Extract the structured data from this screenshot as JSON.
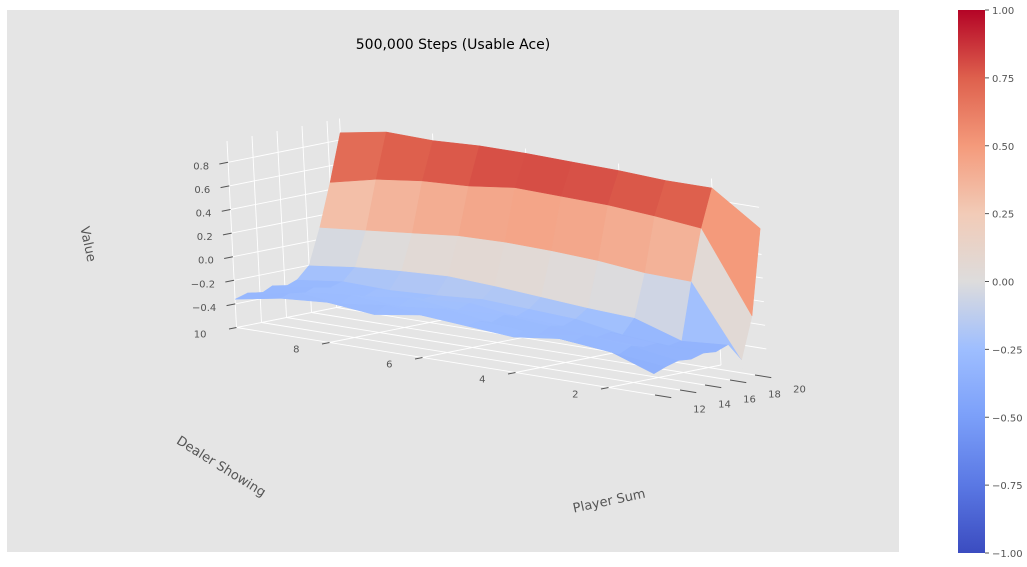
{
  "chart_data": {
    "type": "surface3d",
    "title": "500,000 Steps (Usable Ace)",
    "xlabel": "Player Sum",
    "ylabel": "Dealer Showing",
    "zlabel": "Value",
    "x_ticks": [
      "12",
      "14",
      "16",
      "18",
      "20"
    ],
    "y_ticks": [
      "2",
      "4",
      "6",
      "8",
      "10"
    ],
    "z_ticks": [
      "−0.4",
      "−0.2",
      "0.0",
      "0.2",
      "0.4",
      "0.6",
      "0.8"
    ],
    "x": [
      12,
      13,
      14,
      15,
      16,
      17,
      18,
      19,
      20,
      21
    ],
    "y": [
      1,
      2,
      3,
      4,
      5,
      6,
      7,
      8,
      9,
      10
    ],
    "zlim": [
      -0.6,
      0.98
    ],
    "z": [
      [
        -0.42,
        -0.38,
        -0.35,
        -0.36,
        -0.33,
        -0.34,
        -0.3,
        -0.45,
        -0.1,
        0.62
      ],
      [
        -0.28,
        -0.34,
        -0.29,
        -0.32,
        -0.31,
        -0.35,
        -0.33,
        0.15,
        0.58,
        0.9
      ],
      [
        -0.25,
        -0.3,
        -0.26,
        -0.3,
        -0.28,
        -0.32,
        -0.2,
        0.16,
        0.62,
        0.9
      ],
      [
        -0.3,
        -0.26,
        -0.32,
        -0.27,
        -0.29,
        -0.25,
        -0.18,
        0.2,
        0.65,
        0.92
      ],
      [
        -0.27,
        -0.25,
        -0.28,
        -0.24,
        -0.27,
        -0.23,
        -0.15,
        0.22,
        0.66,
        0.93
      ],
      [
        -0.24,
        -0.28,
        -0.23,
        -0.26,
        -0.22,
        -0.21,
        -0.12,
        0.23,
        0.67,
        0.94
      ],
      [
        -0.3,
        -0.24,
        -0.27,
        -0.22,
        -0.25,
        -0.24,
        -0.1,
        0.22,
        0.62,
        0.94
      ],
      [
        -0.26,
        -0.29,
        -0.24,
        -0.27,
        -0.23,
        -0.26,
        -0.12,
        0.18,
        0.6,
        0.92
      ],
      [
        -0.29,
        -0.25,
        -0.28,
        -0.24,
        -0.28,
        -0.25,
        -0.15,
        0.14,
        0.55,
        0.93
      ],
      [
        -0.36,
        -0.33,
        -0.36,
        -0.31,
        -0.34,
        -0.3,
        -0.2,
        0.1,
        0.46,
        0.86
      ]
    ]
  },
  "colorbar": {
    "ticks": [
      "1.00",
      "0.75",
      "0.50",
      "0.25",
      "0.00",
      "−0.25",
      "−0.50",
      "−0.75",
      "−1.00"
    ],
    "min": -1.0,
    "max": 1.0,
    "colormap": "coolwarm",
    "low_color": "#3b4cc0",
    "mid_color": "#dddddd",
    "high_color": "#b40426"
  },
  "colors": {
    "pane": "#e5e5e5",
    "grid": "#ffffff",
    "text": "#555555"
  }
}
